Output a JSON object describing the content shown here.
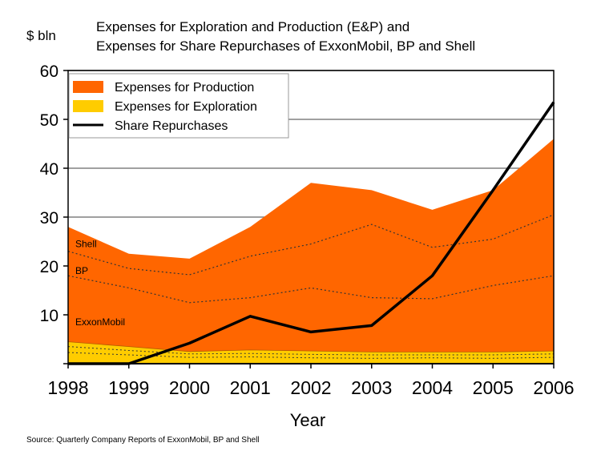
{
  "chart_data": {
    "type": "area",
    "title_line1": "Expenses for Exploration and Production (E&P) and",
    "title_line2": "Expenses for Share Repurchases of ExxonMobil, BP and Shell",
    "ylabel": "$ bln",
    "xlabel": "Year",
    "source": "Source: Quarterly Company Reports of ExxonMobil, BP and Shell",
    "x": [
      "1998",
      "1999",
      "2000",
      "2001",
      "2002",
      "2003",
      "2004",
      "2005",
      "2006"
    ],
    "ylim": [
      0,
      60
    ],
    "yticks": [
      10,
      20,
      30,
      40,
      50,
      60
    ],
    "grid": true,
    "legend_position": "top-left",
    "series": [
      {
        "name": "Expenses for Production",
        "kind": "area",
        "color": "#ff6600",
        "values": [
          28.0,
          22.5,
          21.5,
          28.0,
          37.0,
          35.5,
          31.5,
          35.5,
          46.0
        ]
      },
      {
        "name": "Expenses for Exploration",
        "kind": "area",
        "color": "#ffcc00",
        "values": [
          4.5,
          3.5,
          2.5,
          2.8,
          2.6,
          2.4,
          2.4,
          2.4,
          2.6
        ]
      },
      {
        "name": "Share Repurchases",
        "kind": "line",
        "color": "#000000",
        "values": [
          0.0,
          0.0,
          4.2,
          9.7,
          6.5,
          7.8,
          18.0,
          35.5,
          53.5
        ]
      }
    ],
    "company_dividers": {
      "production": [
        [
          23.0,
          19.5,
          18.2,
          22.0,
          24.5,
          28.5,
          23.8,
          25.5,
          30.5
        ],
        [
          18.0,
          15.5,
          12.5,
          13.5,
          15.5,
          13.5,
          13.3,
          16.0,
          18.0
        ]
      ],
      "exploration": [
        [
          3.5,
          2.7,
          2.0,
          2.1,
          1.9,
          1.8,
          1.8,
          1.8,
          2.0
        ],
        [
          2.3,
          1.8,
          1.3,
          1.4,
          1.2,
          1.1,
          1.2,
          1.1,
          1.3
        ]
      ]
    },
    "region_labels": [
      {
        "text": "Shell",
        "y": 24.5
      },
      {
        "text": "BP",
        "y": 19.0
      },
      {
        "text": "ExxonMobil",
        "y": 8.5
      }
    ]
  }
}
